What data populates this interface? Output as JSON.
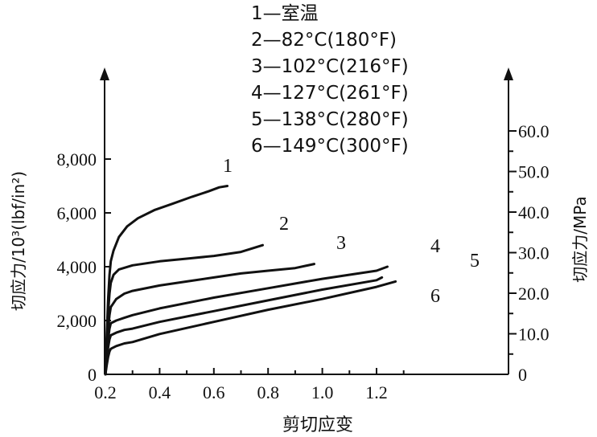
{
  "chart_data": {
    "type": "line",
    "title": "",
    "xlabel": "剪切应变",
    "ylabel_left": "切应力/10³(lbf/in²)",
    "ylabel_right": "切应力/MPa",
    "x_ticks": [
      "0.2",
      "0.4",
      "0.6",
      "0.8",
      "1.0",
      "1.2"
    ],
    "y_left_ticks": [
      "0",
      "2,000",
      "4,000",
      "6,000",
      "8,000"
    ],
    "y_right_ticks": [
      "0",
      "10.0",
      "20.0",
      "30.0",
      "40.0",
      "50.0",
      "60.0"
    ],
    "y_left_range": [
      0,
      8
    ],
    "y_right_range": [
      0,
      60
    ],
    "legend_position": "top-center",
    "legend": [
      "1—室温",
      "2—82°C(180°F)",
      "3—102°C(216°F)",
      "4—127°C(261°F)",
      "5—138°C(280°F)",
      "6—149°C(300°F)"
    ],
    "series": [
      {
        "name": "1",
        "points": [
          [
            0.2,
            0
          ],
          [
            0.205,
            1.5
          ],
          [
            0.21,
            2.8
          ],
          [
            0.215,
            3.7
          ],
          [
            0.22,
            4.2
          ],
          [
            0.23,
            4.6
          ],
          [
            0.25,
            5.1
          ],
          [
            0.28,
            5.5
          ],
          [
            0.32,
            5.8
          ],
          [
            0.38,
            6.1
          ],
          [
            0.45,
            6.35
          ],
          [
            0.52,
            6.6
          ],
          [
            0.58,
            6.8
          ],
          [
            0.62,
            6.95
          ],
          [
            0.65,
            7.0
          ]
        ]
      },
      {
        "name": "2",
        "points": [
          [
            0.2,
            0
          ],
          [
            0.205,
            1.2
          ],
          [
            0.21,
            2.3
          ],
          [
            0.215,
            3.0
          ],
          [
            0.22,
            3.4
          ],
          [
            0.23,
            3.7
          ],
          [
            0.25,
            3.9
          ],
          [
            0.3,
            4.05
          ],
          [
            0.4,
            4.2
          ],
          [
            0.5,
            4.3
          ],
          [
            0.6,
            4.4
          ],
          [
            0.7,
            4.55
          ],
          [
            0.78,
            4.8
          ]
        ]
      },
      {
        "name": "3",
        "points": [
          [
            0.2,
            0
          ],
          [
            0.205,
            0.9
          ],
          [
            0.21,
            1.7
          ],
          [
            0.215,
            2.2
          ],
          [
            0.22,
            2.5
          ],
          [
            0.24,
            2.8
          ],
          [
            0.27,
            3.0
          ],
          [
            0.3,
            3.1
          ],
          [
            0.4,
            3.3
          ],
          [
            0.5,
            3.45
          ],
          [
            0.6,
            3.6
          ],
          [
            0.7,
            3.75
          ],
          [
            0.8,
            3.85
          ],
          [
            0.9,
            3.95
          ],
          [
            0.97,
            4.1
          ]
        ]
      },
      {
        "name": "4",
        "points": [
          [
            0.2,
            0
          ],
          [
            0.205,
            0.7
          ],
          [
            0.21,
            1.3
          ],
          [
            0.215,
            1.7
          ],
          [
            0.22,
            1.9
          ],
          [
            0.24,
            2.0
          ],
          [
            0.27,
            2.1
          ],
          [
            0.3,
            2.2
          ],
          [
            0.4,
            2.45
          ],
          [
            0.6,
            2.85
          ],
          [
            0.8,
            3.2
          ],
          [
            1.0,
            3.55
          ],
          [
            1.2,
            3.85
          ],
          [
            1.24,
            4.0
          ]
        ]
      },
      {
        "name": "5",
        "points": [
          [
            0.2,
            0
          ],
          [
            0.205,
            0.5
          ],
          [
            0.21,
            1.0
          ],
          [
            0.215,
            1.3
          ],
          [
            0.22,
            1.45
          ],
          [
            0.24,
            1.55
          ],
          [
            0.27,
            1.65
          ],
          [
            0.3,
            1.7
          ],
          [
            0.4,
            1.95
          ],
          [
            0.6,
            2.35
          ],
          [
            0.8,
            2.75
          ],
          [
            1.0,
            3.15
          ],
          [
            1.2,
            3.5
          ],
          [
            1.22,
            3.6
          ]
        ]
      },
      {
        "name": "6",
        "points": [
          [
            0.2,
            0
          ],
          [
            0.205,
            0.35
          ],
          [
            0.21,
            0.65
          ],
          [
            0.215,
            0.85
          ],
          [
            0.22,
            0.95
          ],
          [
            0.24,
            1.05
          ],
          [
            0.27,
            1.15
          ],
          [
            0.3,
            1.2
          ],
          [
            0.4,
            1.5
          ],
          [
            0.6,
            1.95
          ],
          [
            0.8,
            2.4
          ],
          [
            1.0,
            2.8
          ],
          [
            1.2,
            3.25
          ],
          [
            1.27,
            3.45
          ]
        ]
      }
    ],
    "series_labels": [
      "1",
      "2",
      "3",
      "4",
      "5",
      "6"
    ]
  }
}
